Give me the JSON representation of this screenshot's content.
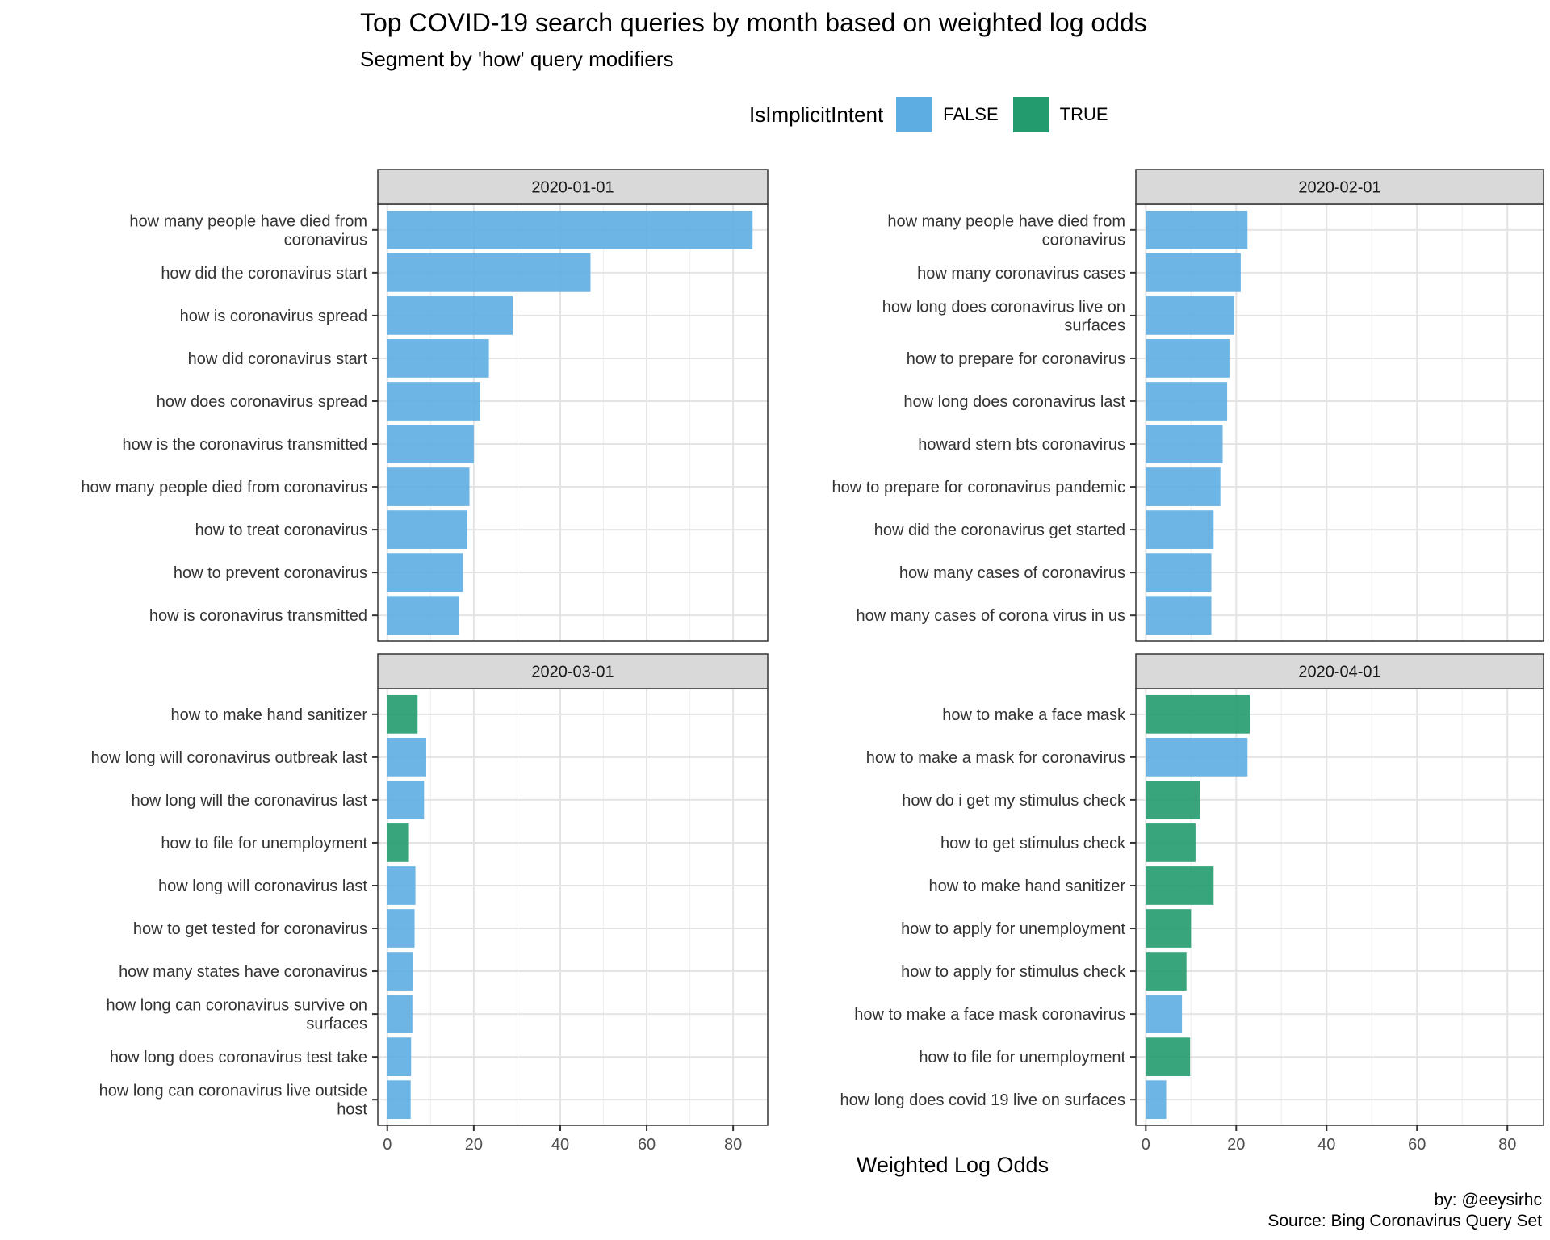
{
  "title": "Top COVID-19 search queries by month based on weighted log odds",
  "subtitle": "Segment by 'how' query modifiers",
  "legend": {
    "title": "IsImplicitIntent",
    "items": [
      {
        "label": "FALSE",
        "color": "#5DADE2"
      },
      {
        "label": "TRUE",
        "color": "#239B6E"
      }
    ]
  },
  "caption": {
    "line1": "by: @eeysirhc",
    "line2": "Source: Bing Coronavirus Query Set"
  },
  "chart_data": {
    "type": "bar",
    "orientation": "horizontal",
    "xlabel": "Weighted Log Odds",
    "ylabel": "",
    "xlim": [
      0,
      88
    ],
    "xticks": [
      0,
      20,
      40,
      60,
      80
    ],
    "grid": true,
    "legend_position": "top",
    "colors": {
      "FALSE": "#5DADE2",
      "TRUE": "#239B6E"
    },
    "facets": [
      {
        "label": "2020-01-01",
        "bars": [
          {
            "query": "how many people have died from coronavirus",
            "lines": [
              "how many people have died from",
              "coronavirus"
            ],
            "value": 84.5,
            "implicit": "FALSE"
          },
          {
            "query": "how did the coronavirus start",
            "lines": [
              "how did the coronavirus start"
            ],
            "value": 47,
            "implicit": "FALSE"
          },
          {
            "query": "how is coronavirus spread",
            "lines": [
              "how is coronavirus spread"
            ],
            "value": 29,
            "implicit": "FALSE"
          },
          {
            "query": "how did coronavirus start",
            "lines": [
              "how did coronavirus start"
            ],
            "value": 23.5,
            "implicit": "FALSE"
          },
          {
            "query": "how does coronavirus spread",
            "lines": [
              "how does coronavirus spread"
            ],
            "value": 21.5,
            "implicit": "FALSE"
          },
          {
            "query": "how is the coronavirus transmitted",
            "lines": [
              "how is the coronavirus transmitted"
            ],
            "value": 20,
            "implicit": "FALSE"
          },
          {
            "query": "how many people died from coronavirus",
            "lines": [
              "how many people died from coronavirus"
            ],
            "value": 19,
            "implicit": "FALSE"
          },
          {
            "query": "how to treat coronavirus",
            "lines": [
              "how to treat coronavirus"
            ],
            "value": 18.5,
            "implicit": "FALSE"
          },
          {
            "query": "how to prevent coronavirus",
            "lines": [
              "how to prevent coronavirus"
            ],
            "value": 17.5,
            "implicit": "FALSE"
          },
          {
            "query": "how is coronavirus transmitted",
            "lines": [
              "how is coronavirus transmitted"
            ],
            "value": 16.5,
            "implicit": "FALSE"
          }
        ]
      },
      {
        "label": "2020-02-01",
        "bars": [
          {
            "query": "how many people have died from coronavirus",
            "lines": [
              "how many people have died from",
              "coronavirus"
            ],
            "value": 22.5,
            "implicit": "FALSE"
          },
          {
            "query": "how many coronavirus cases",
            "lines": [
              "how many coronavirus cases"
            ],
            "value": 21,
            "implicit": "FALSE"
          },
          {
            "query": "how long does coronavirus live on surfaces",
            "lines": [
              "how long does coronavirus live on",
              "surfaces"
            ],
            "value": 19.5,
            "implicit": "FALSE"
          },
          {
            "query": "how to prepare for coronavirus",
            "lines": [
              "how to prepare for coronavirus"
            ],
            "value": 18.5,
            "implicit": "FALSE"
          },
          {
            "query": "how long does coronavirus last",
            "lines": [
              "how long does coronavirus last"
            ],
            "value": 18,
            "implicit": "FALSE"
          },
          {
            "query": "howard stern bts coronavirus",
            "lines": [
              "howard stern bts coronavirus"
            ],
            "value": 17,
            "implicit": "FALSE"
          },
          {
            "query": "how to prepare for coronavirus pandemic",
            "lines": [
              "how to prepare for coronavirus pandemic"
            ],
            "value": 16.5,
            "implicit": "FALSE"
          },
          {
            "query": "how did the coronavirus get started",
            "lines": [
              "how did the coronavirus get started"
            ],
            "value": 15,
            "implicit": "FALSE"
          },
          {
            "query": "how many cases of coronavirus",
            "lines": [
              "how many cases of coronavirus"
            ],
            "value": 14.5,
            "implicit": "FALSE"
          },
          {
            "query": "how many cases of corona virus in us",
            "lines": [
              "how many cases of corona virus in us"
            ],
            "value": 14.5,
            "implicit": "FALSE"
          }
        ]
      },
      {
        "label": "2020-03-01",
        "bars": [
          {
            "query": "how to make hand sanitizer",
            "lines": [
              "how to make hand sanitizer"
            ],
            "value": 7,
            "implicit": "TRUE"
          },
          {
            "query": "how long will coronavirus outbreak last",
            "lines": [
              "how long will coronavirus outbreak last"
            ],
            "value": 9,
            "implicit": "FALSE"
          },
          {
            "query": "how long will the coronavirus last",
            "lines": [
              "how long will the coronavirus last"
            ],
            "value": 8.5,
            "implicit": "FALSE"
          },
          {
            "query": "how to file for unemployment",
            "lines": [
              "how to file for unemployment"
            ],
            "value": 5,
            "implicit": "TRUE"
          },
          {
            "query": "how long will coronavirus last",
            "lines": [
              "how long will coronavirus last"
            ],
            "value": 6.5,
            "implicit": "FALSE"
          },
          {
            "query": "how to get tested for coronavirus",
            "lines": [
              "how to get tested for coronavirus"
            ],
            "value": 6.3,
            "implicit": "FALSE"
          },
          {
            "query": "how many states have coronavirus",
            "lines": [
              "how many states have coronavirus"
            ],
            "value": 6,
            "implicit": "FALSE"
          },
          {
            "query": "how long can coronavirus survive on surfaces",
            "lines": [
              "how long can coronavirus survive on",
              "surfaces"
            ],
            "value": 5.8,
            "implicit": "FALSE"
          },
          {
            "query": "how long does coronavirus test take",
            "lines": [
              "how long does coronavirus test take"
            ],
            "value": 5.5,
            "implicit": "FALSE"
          },
          {
            "query": "how long can coronavirus live outside host",
            "lines": [
              "how long can coronavirus live outside",
              "host"
            ],
            "value": 5.4,
            "implicit": "FALSE"
          }
        ]
      },
      {
        "label": "2020-04-01",
        "bars": [
          {
            "query": "how to make a face mask",
            "lines": [
              "how to make a face mask"
            ],
            "value": 23,
            "implicit": "TRUE"
          },
          {
            "query": "how to make a mask for coronavirus",
            "lines": [
              "how to make a mask for coronavirus"
            ],
            "value": 22.5,
            "implicit": "FALSE"
          },
          {
            "query": "how do i get my stimulus check",
            "lines": [
              "how do i get my stimulus check"
            ],
            "value": 12,
            "implicit": "TRUE"
          },
          {
            "query": "how to get stimulus check",
            "lines": [
              "how to get stimulus check"
            ],
            "value": 11,
            "implicit": "TRUE"
          },
          {
            "query": "how to make hand sanitizer",
            "lines": [
              "how to make hand sanitizer"
            ],
            "value": 15,
            "implicit": "TRUE"
          },
          {
            "query": "how to apply for unemployment",
            "lines": [
              "how to apply for unemployment"
            ],
            "value": 10,
            "implicit": "TRUE"
          },
          {
            "query": "how to apply for stimulus check",
            "lines": [
              "how to apply for stimulus check"
            ],
            "value": 9,
            "implicit": "TRUE"
          },
          {
            "query": "how to make a face mask coronavirus",
            "lines": [
              "how to make a face mask coronavirus"
            ],
            "value": 8,
            "implicit": "FALSE"
          },
          {
            "query": "how to file for unemployment",
            "lines": [
              "how to file for unemployment"
            ],
            "value": 9.8,
            "implicit": "TRUE"
          },
          {
            "query": "how long does covid 19 live on surfaces",
            "lines": [
              "how long does covid 19 live on surfaces"
            ],
            "value": 4.5,
            "implicit": "FALSE"
          }
        ]
      }
    ]
  }
}
